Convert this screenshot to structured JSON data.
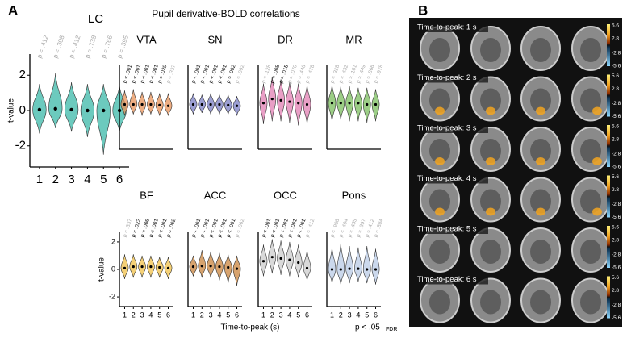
{
  "panel_labels": [
    "A",
    "B"
  ],
  "title": "Pupil derivative-BOLD correlations",
  "x_label": "Time-to-peak (s)",
  "footnote": "p < .05",
  "footnote_sub": "FDR",
  "chart_data": [
    {
      "type": "violin",
      "title": "LC",
      "x": [
        1,
        2,
        3,
        4,
        5,
        6
      ],
      "xticks": [
        1,
        2,
        3,
        4,
        5,
        6
      ],
      "xlim": [
        0.4,
        6.6
      ],
      "ylim": [
        -3.2,
        3.2
      ],
      "yticks": [
        -2,
        0,
        2
      ],
      "ylabel": "t-value",
      "color": "#3bb8a8",
      "p_labels": [
        "p = .412",
        "p = .308",
        "p = .412",
        "p = .738",
        "p = .766",
        "p = .395"
      ],
      "p_label_colors": [
        "#aaa",
        "#aaa",
        "#aaa",
        "#aaa",
        "#aaa",
        "#aaa"
      ],
      "values": [
        0.05,
        0.1,
        0.05,
        0,
        0,
        0
      ],
      "mins": [
        -1.3,
        -1,
        -1.2,
        -1.5,
        -2.5,
        -1.2
      ],
      "maxs": [
        1.5,
        2.1,
        1.6,
        1.5,
        1.5,
        1.4
      ]
    },
    {
      "type": "violin",
      "title": "VTA",
      "x": [
        1,
        2,
        3,
        4,
        5,
        6
      ],
      "xlim": [
        0.4,
        6.6
      ],
      "ylim": [
        -3,
        3
      ],
      "color": "#e8935a",
      "p_labels": [
        "p < .001",
        "p < .001",
        "p < .001",
        "p < .001",
        "p = .029",
        "p = .337"
      ],
      "p_label_colors": [
        "#000",
        "#000",
        "#000",
        "#000",
        "#000",
        "#aaa"
      ],
      "values": [
        0.2,
        0.2,
        0.2,
        0.2,
        0.15,
        0.1
      ],
      "mins": [
        -0.6,
        -0.5,
        -0.6,
        -0.5,
        -0.6,
        -0.6
      ],
      "maxs": [
        1.2,
        1.3,
        1.1,
        1.1,
        1.0,
        1.0
      ]
    },
    {
      "type": "violin",
      "title": "SN",
      "x": [
        1,
        2,
        3,
        4,
        5,
        6
      ],
      "xlim": [
        0.4,
        6.6
      ],
      "ylim": [
        -3,
        3
      ],
      "color": "#7b7fc4",
      "p_labels": [
        "p < .001",
        "p < .001",
        "p < .001",
        "p < .001",
        "p = .002",
        "p = .092"
      ],
      "p_label_colors": [
        "#000",
        "#000",
        "#000",
        "#000",
        "#000",
        "#aaa"
      ],
      "values": [
        0.2,
        0.2,
        0.2,
        0.2,
        0.15,
        0.1
      ],
      "mins": [
        -0.5,
        -0.4,
        -0.5,
        -0.5,
        -0.5,
        -0.6
      ],
      "maxs": [
        1.0,
        0.9,
        1.0,
        0.9,
        0.9,
        0.8
      ]
    },
    {
      "type": "violin",
      "title": "DR",
      "x": [
        1,
        2,
        3,
        4,
        5,
        6
      ],
      "xlim": [
        0.4,
        6.6
      ],
      "ylim": [
        -3,
        3
      ],
      "color": "#e27fb3",
      "p_labels": [
        "p = .128",
        "p = .008",
        "p = .015",
        "p = .070",
        "p = .446",
        "p = .478"
      ],
      "p_label_colors": [
        "#aaa",
        "#000",
        "#000",
        "#aaa",
        "#aaa",
        "#aaa"
      ],
      "values": [
        0.3,
        0.6,
        0.5,
        0.4,
        0.3,
        0.2
      ],
      "mins": [
        -1.2,
        -1.0,
        -1.0,
        -1.1,
        -1.3,
        -1.2
      ],
      "maxs": [
        1.7,
        2.2,
        2.0,
        1.8,
        1.7,
        1.6
      ]
    },
    {
      "type": "violin",
      "title": "MR",
      "x": [
        1,
        2,
        3,
        4,
        5,
        6
      ],
      "xlim": [
        0.4,
        6.6
      ],
      "ylim": [
        -3,
        3
      ],
      "color": "#7bbd5e",
      "p_labels": [
        "p = .328",
        "p = .432",
        "p = .181",
        "p = .449",
        "p = .866",
        "p = .978"
      ],
      "p_label_colors": [
        "#aaa",
        "#aaa",
        "#aaa",
        "#aaa",
        "#aaa",
        "#aaa"
      ],
      "values": [
        0.3,
        0.3,
        0.3,
        0.3,
        0.2,
        0.2
      ],
      "mins": [
        -1.0,
        -0.9,
        -1.0,
        -1.0,
        -1.1,
        -1.0
      ],
      "maxs": [
        1.6,
        1.5,
        1.5,
        1.4,
        1.4,
        1.3
      ]
    },
    {
      "type": "violin",
      "title": "BF",
      "x": [
        1,
        2,
        3,
        4,
        5,
        6
      ],
      "xticks": [
        1,
        2,
        3,
        4,
        5,
        6
      ],
      "xlim": [
        0.4,
        6.6
      ],
      "ylim": [
        -2.7,
        2.7
      ],
      "yticks": [
        -2,
        0,
        2
      ],
      "ylabel": "t-value",
      "color": "#f2c24a",
      "p_labels": [
        "p = .337",
        "p = .022",
        "p = .006",
        "p < .001",
        "p < .001",
        "p = .002"
      ],
      "p_label_colors": [
        "#aaa",
        "#000",
        "#000",
        "#000",
        "#000",
        "#000"
      ],
      "values": [
        0.1,
        0.2,
        0.2,
        0.2,
        0.15,
        0.1
      ],
      "mins": [
        -0.7,
        -0.6,
        -0.6,
        -0.6,
        -0.6,
        -0.7
      ],
      "maxs": [
        1.1,
        1.1,
        1.0,
        1.0,
        0.9,
        0.9
      ]
    },
    {
      "type": "violin",
      "title": "ACC",
      "x": [
        1,
        2,
        3,
        4,
        5,
        6
      ],
      "xticks": [
        1,
        2,
        3,
        4,
        5,
        6
      ],
      "xlim": [
        0.4,
        6.6
      ],
      "ylim": [
        -2.7,
        2.7
      ],
      "color": "#c9843e",
      "p_labels": [
        "p < .001",
        "p < .001",
        "p < .001",
        "p < .001",
        "p < .001",
        "p = .062"
      ],
      "p_label_colors": [
        "#000",
        "#000",
        "#000",
        "#000",
        "#000",
        "#aaa"
      ],
      "values": [
        0.2,
        0.25,
        0.25,
        0.2,
        0.15,
        0.05
      ],
      "mins": [
        -0.5,
        -0.6,
        -0.6,
        -0.8,
        -1.0,
        -1.2
      ],
      "maxs": [
        1.0,
        1.4,
        1.3,
        1.2,
        1.1,
        1.0
      ]
    },
    {
      "type": "violin",
      "title": "OCC",
      "x": [
        1,
        2,
        3,
        4,
        5,
        6
      ],
      "xticks": [
        1,
        2,
        3,
        4,
        5,
        6
      ],
      "xlim": [
        0.4,
        6.6
      ],
      "ylim": [
        -2.7,
        2.7
      ],
      "color": "#cccccc",
      "p_labels": [
        "p < .001",
        "p < .001",
        "p < .001",
        "p < .001",
        "p < .001",
        "p = .412"
      ],
      "p_label_colors": [
        "#000",
        "#000",
        "#000",
        "#000",
        "#000",
        "#aaa"
      ],
      "values": [
        0.6,
        0.9,
        0.8,
        0.7,
        0.5,
        0.1
      ],
      "mins": [
        -0.5,
        -0.3,
        -0.4,
        -0.5,
        -0.6,
        -0.8
      ],
      "maxs": [
        1.8,
        2.2,
        2.1,
        2.0,
        1.8,
        1.4
      ]
    },
    {
      "type": "violin",
      "title": "Pons",
      "x": [
        1,
        2,
        3,
        4,
        5,
        6
      ],
      "xticks": [
        1,
        2,
        3,
        4,
        5,
        6
      ],
      "xlim": [
        0.4,
        6.6
      ],
      "ylim": [
        -2.7,
        2.7
      ],
      "color": "#b9cbe6",
      "p_labels": [
        "p = .986",
        "p = .494",
        "p = .455",
        "p = .397",
        "p = .412",
        "p = .884"
      ],
      "p_label_colors": [
        "#aaa",
        "#aaa",
        "#aaa",
        "#aaa",
        "#aaa",
        "#aaa"
      ],
      "values": [
        0,
        0,
        0.05,
        0.05,
        0,
        0
      ],
      "mins": [
        -1.0,
        -1.1,
        -1.0,
        -0.9,
        -1.0,
        -1.1
      ],
      "maxs": [
        1.6,
        1.9,
        1.7,
        1.6,
        1.7,
        1.5
      ]
    }
  ],
  "panel_b": {
    "row_labels": [
      "Time-to-peak: 1 s",
      "Time-to-peak: 2 s",
      "Time-to-peak: 3 s",
      "Time-to-peak: 4 s",
      "Time-to-peak: 5 s",
      "Time-to-peak: 6 s"
    ],
    "colorbar_ticks": [
      5.6,
      2.8,
      -2.8,
      -5.6
    ]
  }
}
